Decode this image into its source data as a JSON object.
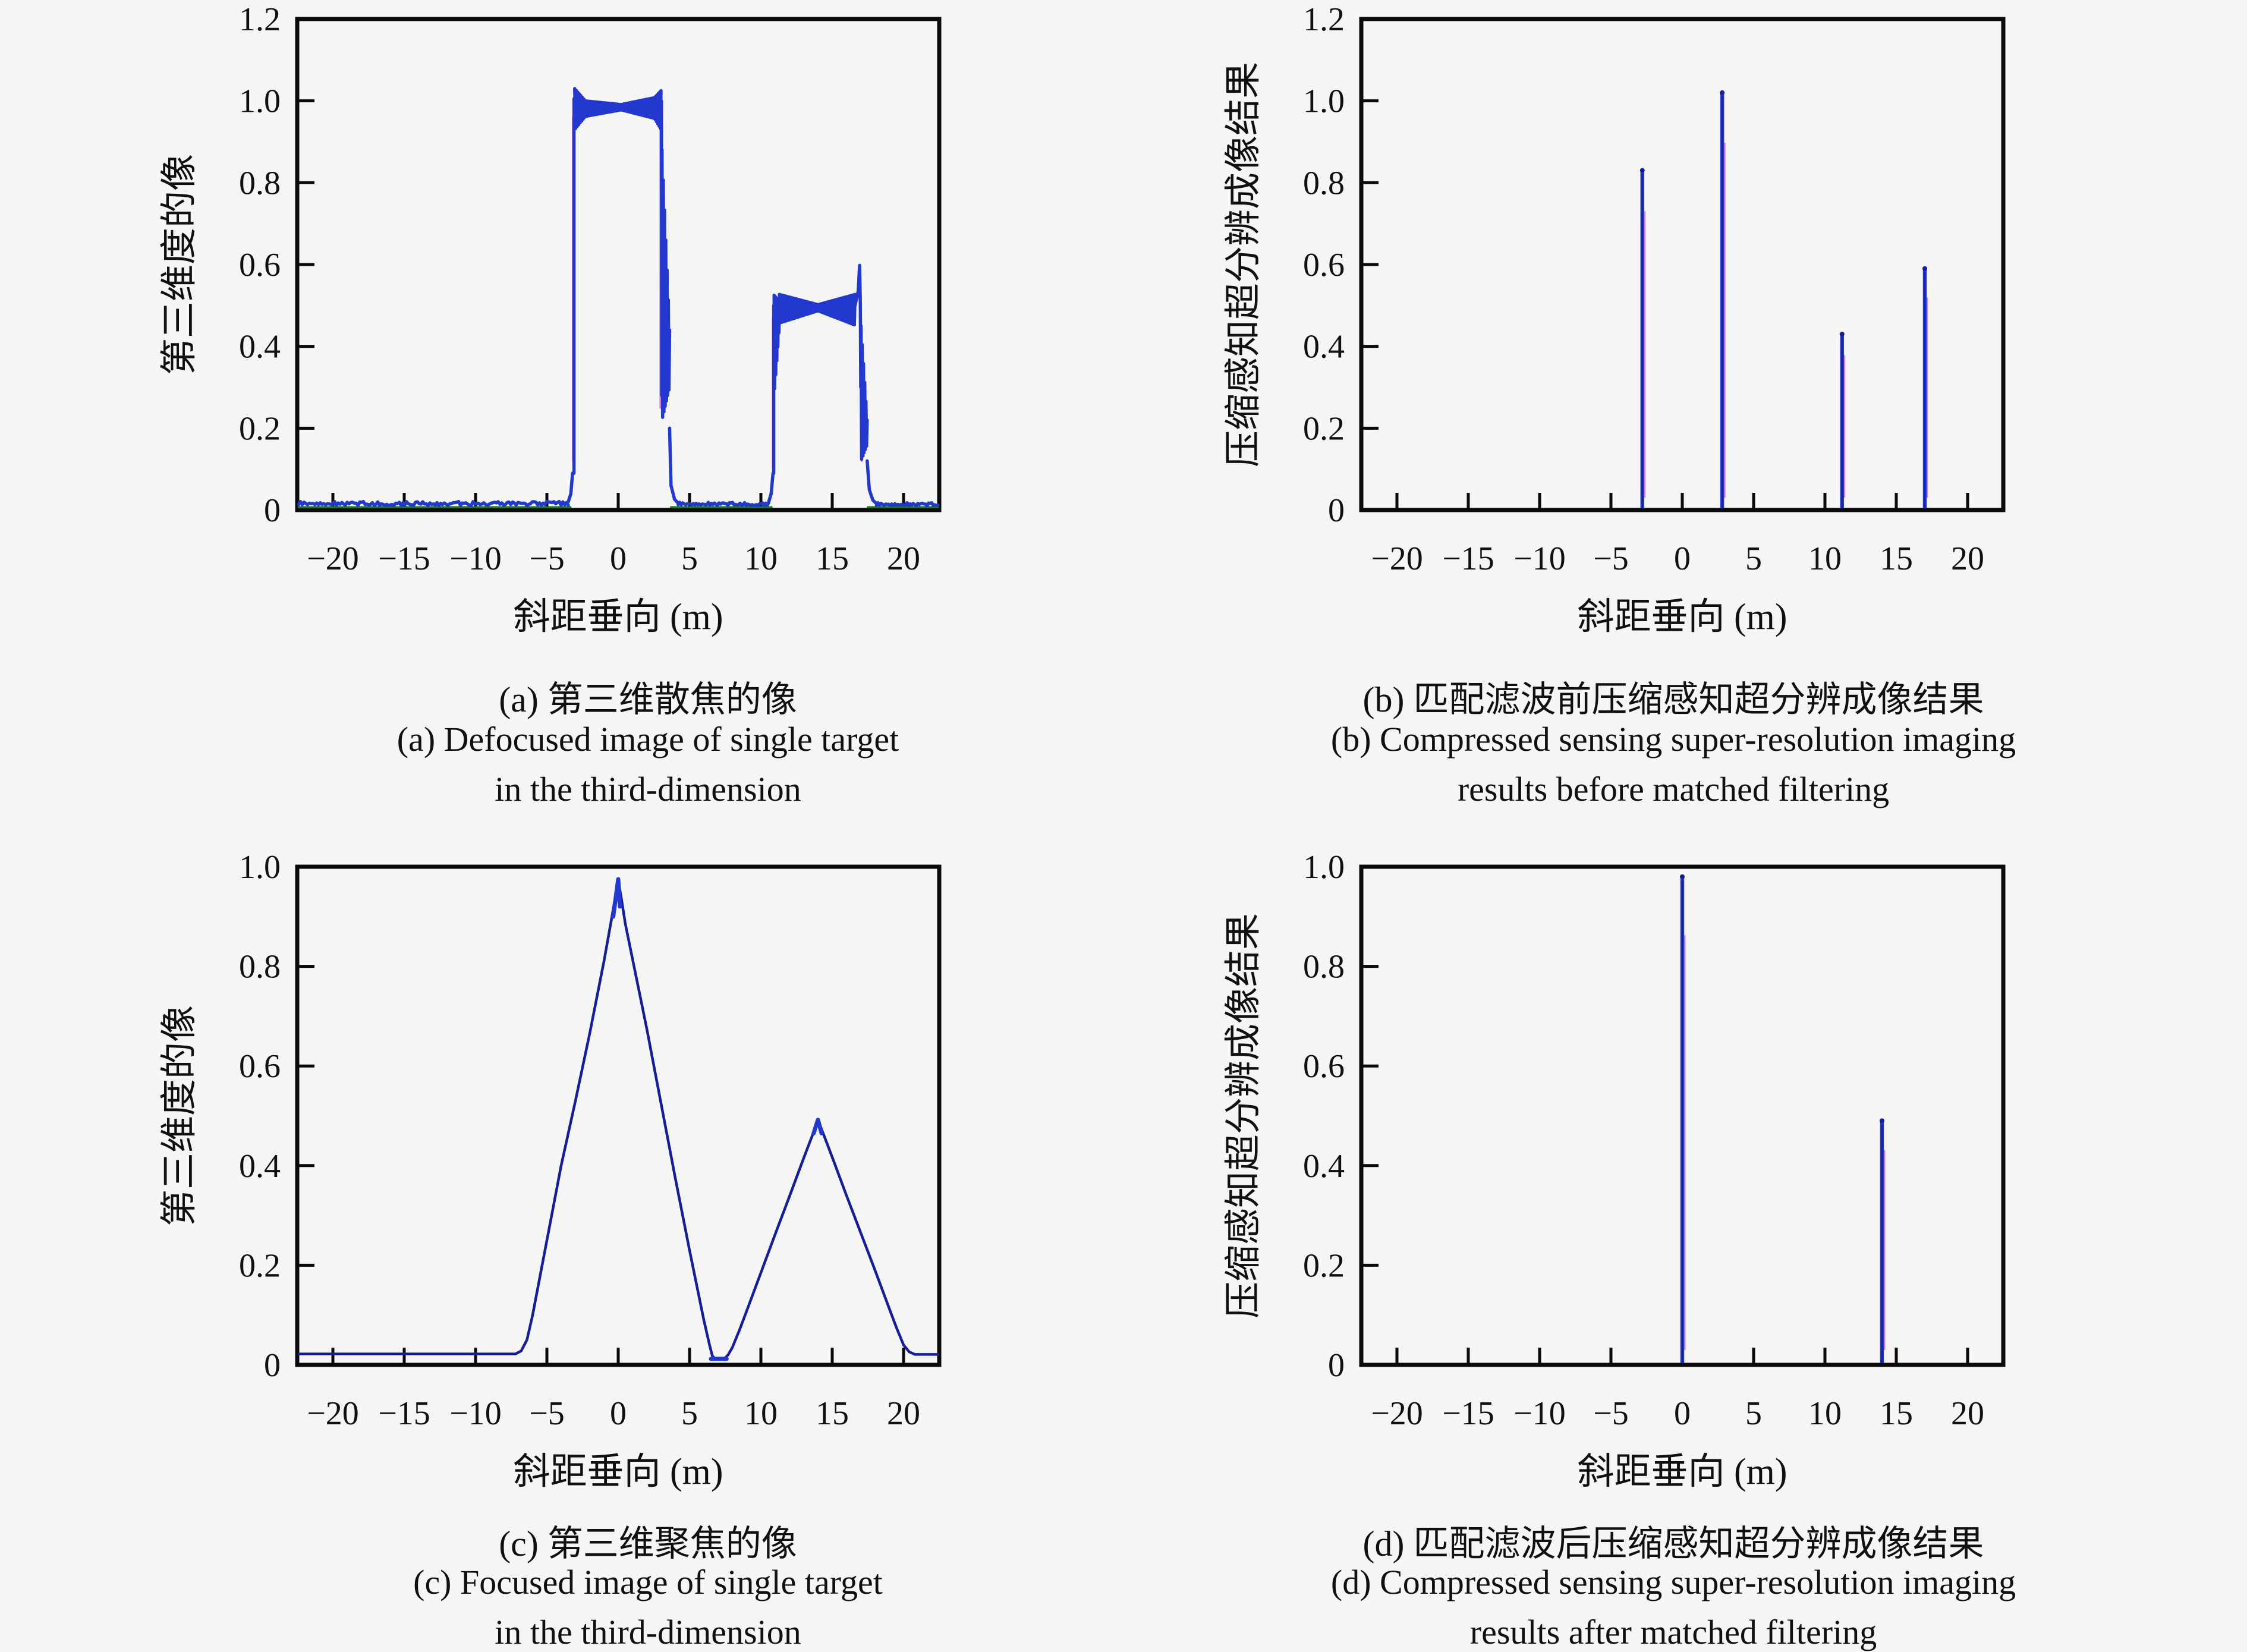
{
  "colors": {
    "background": "#f5f5f4",
    "frame": "#0b0b0b",
    "text": "#101010",
    "line_blue": "#2338cf",
    "line_navy": "#161d9b",
    "line_green": "#1a7a1a",
    "line_magenta": "#d983da"
  },
  "panels": [
    {
      "id": "a",
      "captions": {
        "zh": "(a) 第三维散焦的像",
        "en1": "(a) Defocused image of single target",
        "en2": "in the third-dimension"
      }
    },
    {
      "id": "b",
      "captions": {
        "zh": "(b) 匹配滤波前压缩感知超分辨成像结果",
        "en1": "(b) Compressed sensing super-resolution imaging",
        "en2": "results before matched filtering"
      }
    },
    {
      "id": "c",
      "captions": {
        "zh": "(c) 第三维聚焦的像",
        "en1": "(c) Focused image of single target",
        "en2": "in the third-dimension"
      }
    },
    {
      "id": "d",
      "captions": {
        "zh": "(d) 匹配滤波后压缩感知超分辨成像结果",
        "en1": "(d) Compressed sensing super-resolution imaging",
        "en2": "results after matched filtering"
      }
    }
  ],
  "chart_data": [
    {
      "id": "a",
      "type": "line",
      "title": "(a) 第三维散焦的像",
      "xlabel": "斜距垂向 (m)",
      "ylabel": "第三维度的像",
      "xlim": [
        -22.5,
        22.5
      ],
      "ylim": [
        0,
        1.2
      ],
      "grid": false,
      "xticks": [
        -20,
        -15,
        -10,
        -5,
        0,
        5,
        10,
        15,
        20
      ],
      "xtick_labels": [
        "−20",
        "−15",
        "−10",
        "−5",
        "0",
        "5",
        "10",
        "15",
        "20"
      ],
      "yticks": [
        0,
        0.2,
        0.4,
        0.6,
        0.8,
        1.0,
        1.2
      ],
      "ytick_labels": [
        "0",
        "0.2",
        "0.4",
        "0.6",
        "0.8",
        "1.0",
        "1.2"
      ],
      "description": "Defocused pulse pair: rectangular pulse x∈[−3,3] amplitude ≈1.0 and x∈[11,17] amplitude ≈0.5, ripple bands on tops and edges, baseline ≈0.015",
      "series": [
        {
          "name": "zero-reference",
          "color": "line_green",
          "width": 3.5,
          "segments": [
            {
              "kind": "poly",
              "pts": [
                [
                  -22.4,
                  0.007
                ],
                [
                  -3.35,
                  0.007
                ]
              ]
            },
            {
              "kind": "poly",
              "pts": [
                [
                  3.7,
                  0.007
                ],
                [
                  10.75,
                  0.007
                ]
              ]
            },
            {
              "kind": "poly",
              "pts": [
                [
                  17.5,
                  0.007
                ],
                [
                  22.4,
                  0.007
                ]
              ]
            }
          ]
        },
        {
          "name": "ghost-edges",
          "color": "line_magenta",
          "width": 3.5,
          "segments": [
            {
              "kind": "poly",
              "pts": [
                [
                  -3.17,
                  0.12
                ],
                [
                  -3.17,
                  0.96
                ]
              ]
            },
            {
              "kind": "poly",
              "pts": [
                [
                  2.96,
                  0.93
                ],
                [
                  2.96,
                  0.25
                ]
              ]
            },
            {
              "kind": "poly",
              "pts": [
                [
                  10.84,
                  0.1
                ],
                [
                  10.84,
                  0.47
                ]
              ]
            },
            {
              "kind": "poly",
              "pts": [
                [
                  17.06,
                  0.44
                ],
                [
                  17.06,
                  0.12
                ]
              ]
            }
          ]
        },
        {
          "name": "defocused-image",
          "color": "line_blue",
          "width": 5.5,
          "segments": [
            {
              "kind": "noisy",
              "x0": -22.4,
              "x1": -3.5,
              "y": 0.016,
              "amp": 0.005,
              "n": 150
            },
            {
              "kind": "poly",
              "pts": [
                [
                  -3.5,
                  0.02
                ],
                [
                  -3.32,
                  0.04
                ],
                [
                  -3.2,
                  0.09
                ]
              ]
            },
            {
              "kind": "poly",
              "pts": [
                [
                  -3.1,
                  0.09
                ],
                [
                  -3.1,
                  1.005
                ]
              ]
            },
            {
              "kind": "wedge",
              "x0": -3.05,
              "x1": -2.3,
              "topA": 1.03,
              "botA": 0.93,
              "topB": 1.0,
              "botB": 0.962,
              "n": 14
            },
            {
              "kind": "wedge",
              "x0": -2.3,
              "x1": 0.2,
              "topA": 1.0,
              "botA": 0.962,
              "topB": 0.991,
              "botB": 0.978,
              "n": 50
            },
            {
              "kind": "wedge",
              "x0": 0.2,
              "x1": 2.55,
              "topA": 0.991,
              "botA": 0.978,
              "topB": 1.008,
              "botB": 0.957,
              "n": 46
            },
            {
              "kind": "wedge",
              "x0": 2.55,
              "x1": 3.0,
              "topA": 1.008,
              "botA": 0.957,
              "topB": 1.025,
              "botB": 0.93,
              "n": 10
            },
            {
              "kind": "poly",
              "pts": [
                [
                  3.03,
                  1.0
                ],
                [
                  3.05,
                  0.28
                ]
              ]
            },
            {
              "kind": "wedge",
              "x0": 3.07,
              "x1": 3.6,
              "topA": 0.88,
              "botA": 0.22,
              "topB": 0.44,
              "botB": 0.3,
              "n": 12
            },
            {
              "kind": "poly",
              "pts": [
                [
                  3.6,
                  0.2
                ],
                [
                  3.7,
                  0.06
                ],
                [
                  3.95,
                  0.026
                ],
                [
                  4.2,
                  0.017
                ]
              ]
            },
            {
              "kind": "noisy",
              "x0": 4.2,
              "x1": 10.55,
              "y": 0.015,
              "amp": 0.004,
              "n": 60
            },
            {
              "kind": "poly",
              "pts": [
                [
                  10.55,
                  0.02
                ],
                [
                  10.72,
                  0.04
                ],
                [
                  10.85,
                  0.09
                ]
              ]
            },
            {
              "kind": "poly",
              "pts": [
                [
                  10.9,
                  0.09
                ],
                [
                  10.9,
                  0.5
                ]
              ]
            },
            {
              "kind": "wedge",
              "x0": 10.93,
              "x1": 11.3,
              "topA": 0.525,
              "botA": 0.28,
              "topB": 0.51,
              "botB": 0.45,
              "n": 10
            },
            {
              "kind": "wedge",
              "x0": 11.3,
              "x1": 14.0,
              "topA": 0.527,
              "botA": 0.457,
              "topB": 0.502,
              "botB": 0.487,
              "n": 54
            },
            {
              "kind": "wedge",
              "x0": 14.0,
              "x1": 16.6,
              "topA": 0.502,
              "botA": 0.487,
              "topB": 0.527,
              "botB": 0.452,
              "n": 52
            },
            {
              "kind": "poly",
              "pts": [
                [
                  16.6,
                  0.5
                ],
                [
                  16.82,
                  0.535
                ],
                [
                  16.92,
                  0.598
                ],
                [
                  16.97,
                  0.5
                ],
                [
                  17.0,
                  0.3
                ]
              ]
            },
            {
              "kind": "wedge",
              "x0": 17.02,
              "x1": 17.45,
              "topA": 0.45,
              "botA": 0.12,
              "topB": 0.22,
              "botB": 0.16,
              "n": 10
            },
            {
              "kind": "poly",
              "pts": [
                [
                  17.45,
                  0.12
                ],
                [
                  17.6,
                  0.05
                ],
                [
                  17.85,
                  0.024
                ],
                [
                  18.1,
                  0.016
                ]
              ]
            },
            {
              "kind": "noisy",
              "x0": 18.1,
              "x1": 22.4,
              "y": 0.014,
              "amp": 0.004,
              "n": 40
            }
          ]
        }
      ]
    },
    {
      "id": "b",
      "type": "stem",
      "title": "(b) 匹配滤波前压缩感知超分辨成像结果",
      "xlabel": "斜距垂向 (m)",
      "ylabel": "压缩感知超分辨成像结果",
      "xlim": [
        -22.5,
        22.5
      ],
      "ylim": [
        0,
        1.2
      ],
      "grid": false,
      "xticks": [
        -20,
        -15,
        -10,
        -5,
        0,
        5,
        10,
        15,
        20
      ],
      "xtick_labels": [
        "−20",
        "−15",
        "−10",
        "−5",
        "0",
        "5",
        "10",
        "15",
        "20"
      ],
      "yticks": [
        0,
        0.2,
        0.4,
        0.6,
        0.8,
        1.0,
        1.2
      ],
      "ytick_labels": [
        "0",
        "0.2",
        "0.4",
        "0.6",
        "0.8",
        "1.0",
        "1.2"
      ],
      "description": "Four sparse spikes before matched filtering",
      "spikes": [
        {
          "x": -2.8,
          "y": 0.83
        },
        {
          "x": 2.8,
          "y": 1.02
        },
        {
          "x": 11.2,
          "y": 0.43
        },
        {
          "x": 17.0,
          "y": 0.59
        }
      ]
    },
    {
      "id": "c",
      "type": "line",
      "title": "(c) 第三维聚焦的像",
      "xlabel": "斜距垂向 (m)",
      "ylabel": "第三维度的像",
      "xlim": [
        -22.5,
        22.5
      ],
      "ylim": [
        0,
        1.0
      ],
      "grid": false,
      "xticks": [
        -20,
        -15,
        -10,
        -5,
        0,
        5,
        10,
        15,
        20
      ],
      "xtick_labels": [
        "−20",
        "−15",
        "−10",
        "−5",
        "0",
        "5",
        "10",
        "15",
        "20"
      ],
      "yticks": [
        0,
        0.2,
        0.4,
        0.6,
        0.8,
        1.0
      ],
      "ytick_labels": [
        "0",
        "0.2",
        "0.4",
        "0.6",
        "0.8",
        "1.0"
      ],
      "description": "Focused triangular peaks: apex ≈0.97 at x=0 (base ≈ −6.6..6.5) and apex ≈0.49 at x=14 (base ≈ 7.6..20.6), baseline ≈0.02",
      "series": [
        {
          "name": "focused-image",
          "color": "line_navy",
          "width": 4.5,
          "segments": [
            {
              "kind": "poly",
              "pts": [
                [
                  -22.4,
                  0.022
                ],
                [
                  -7.2,
                  0.022
                ],
                [
                  -6.8,
                  0.028
                ],
                [
                  -6.4,
                  0.05
                ],
                [
                  -6,
                  0.1
                ],
                [
                  -5.5,
                  0.175
                ],
                [
                  -5,
                  0.25
                ],
                [
                  -4,
                  0.4
                ],
                [
                  -3,
                  0.53
                ],
                [
                  -2,
                  0.665
                ],
                [
                  -1,
                  0.81
                ],
                [
                  -0.5,
                  0.89
                ],
                [
                  -0.2,
                  0.94
                ],
                [
                  0,
                  0.972
                ],
                [
                  0.2,
                  0.94
                ],
                [
                  0.5,
                  0.885
                ],
                [
                  1,
                  0.815
                ],
                [
                  2,
                  0.675
                ],
                [
                  3,
                  0.525
                ],
                [
                  4,
                  0.375
                ],
                [
                  5,
                  0.23
                ],
                [
                  5.5,
                  0.16
                ],
                [
                  6,
                  0.09
                ],
                [
                  6.4,
                  0.04
                ],
                [
                  6.6,
                  0.018
                ],
                [
                  6.8,
                  0.012
                ],
                [
                  7.4,
                  0.011
                ],
                [
                  7.7,
                  0.02
                ],
                [
                  8,
                  0.035
                ],
                [
                  8.5,
                  0.07
                ],
                [
                  9,
                  0.108
                ],
                [
                  10,
                  0.185
                ],
                [
                  11,
                  0.262
                ],
                [
                  12,
                  0.338
                ],
                [
                  13,
                  0.415
                ],
                [
                  13.6,
                  0.46
                ],
                [
                  14,
                  0.492
                ],
                [
                  14.4,
                  0.462
                ],
                [
                  15,
                  0.417
                ],
                [
                  16,
                  0.34
                ],
                [
                  17,
                  0.265
                ],
                [
                  18,
                  0.19
                ],
                [
                  19,
                  0.113
                ],
                [
                  19.5,
                  0.075
                ],
                [
                  20,
                  0.04
                ],
                [
                  20.4,
                  0.026
                ],
                [
                  20.8,
                  0.021
                ],
                [
                  22.4,
                  0.021
                ]
              ]
            }
          ]
        },
        {
          "name": "apex-highlight",
          "color": "line_blue",
          "width": 7,
          "segments": [
            {
              "kind": "poly",
              "pts": [
                [
                  -0.35,
                  0.9
                ],
                [
                  0,
                  0.975
                ],
                [
                  0.12,
                  0.92
                ]
              ]
            },
            {
              "kind": "poly",
              "pts": [
                [
                  13.7,
                  0.465
                ],
                [
                  14,
                  0.492
                ],
                [
                  14.25,
                  0.465
                ]
              ]
            },
            {
              "kind": "poly",
              "pts": [
                [
                  6.5,
                  0.012
                ],
                [
                  7.6,
                  0.012
                ]
              ]
            }
          ]
        }
      ]
    },
    {
      "id": "d",
      "type": "stem",
      "title": "(d) 匹配滤波后压缩感知超分辨成像结果",
      "xlabel": "斜距垂向 (m)",
      "ylabel": "压缩感知超分辨成像结果",
      "xlim": [
        -22.5,
        22.5
      ],
      "ylim": [
        0,
        1.0
      ],
      "grid": false,
      "xticks": [
        -20,
        -15,
        -10,
        -5,
        0,
        5,
        10,
        15,
        20
      ],
      "xtick_labels": [
        "−20",
        "−15",
        "−10",
        "−5",
        "0",
        "5",
        "10",
        "15",
        "20"
      ],
      "yticks": [
        0,
        0.2,
        0.4,
        0.6,
        0.8,
        1.0
      ],
      "ytick_labels": [
        "0",
        "0.2",
        "0.4",
        "0.6",
        "0.8",
        "1.0"
      ],
      "description": "Two sparse spikes after matched filtering",
      "spikes": [
        {
          "x": 0,
          "y": 0.98
        },
        {
          "x": 14,
          "y": 0.49
        }
      ]
    }
  ]
}
